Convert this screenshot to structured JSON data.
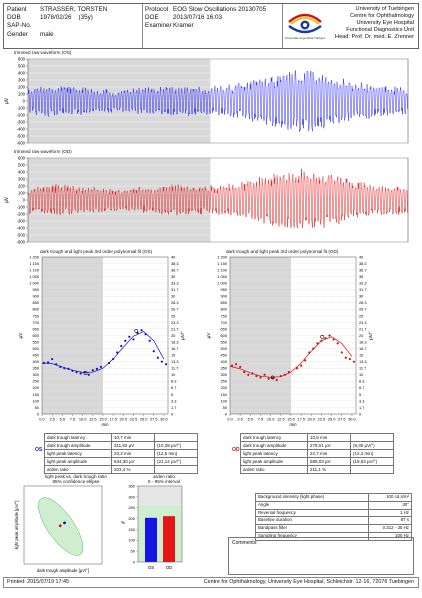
{
  "header": {
    "labels": [
      "Patient",
      "DOB",
      "SAP-No.",
      "Gender"
    ],
    "values": [
      "STRASSER, TORSTEN",
      "1978/02/26    (35y)",
      "",
      "male"
    ],
    "labels2": [
      "Protocol",
      "DOE",
      "Examiner"
    ],
    "values2": [
      "EOG Slow Oscillations 20130705",
      "2013/07/16 16:03",
      "Kramer"
    ],
    "institution": [
      "University of Tuebingen",
      "Centre for Ophthalmology",
      "University Eye Hospital",
      "Functional Diagnostics Unit",
      "Head: Prof. Dr. med. E. Zrenner"
    ],
    "logo_caption": "Universitäts-Augenklinik Tübingen"
  },
  "waveforms": [
    {
      "title": "trimmed raw waveform (OS)",
      "ylabel": "µV",
      "color": "#1a1aff",
      "yticks": [
        "600",
        "500",
        "400",
        "300",
        "200",
        "100",
        "0",
        "-100",
        "-200",
        "-300",
        "-400",
        "-500",
        "-600"
      ]
    },
    {
      "title": "trimmed raw waveform (OD)",
      "ylabel": "µV",
      "color": "#e01010",
      "yticks": [
        "600",
        "500",
        "400",
        "300",
        "200",
        "100",
        "0",
        "-100",
        "-200",
        "-300",
        "-400",
        "-500",
        "-600"
      ]
    }
  ],
  "chart_data": [
    {
      "type": "scatter",
      "title": "dark trough and light peak 3rd order polynomial fit (OS)",
      "xlabel": "min",
      "ylabel": "µV",
      "ylabel_right": "µV/°",
      "xlim": [
        0,
        31
      ],
      "ylim": [
        0,
        1200
      ],
      "xticks": [
        "0.0",
        "2.5",
        "5.0",
        "7.5",
        "10.0",
        "12.5",
        "15.0",
        "17.5",
        "20.0",
        "22.5",
        "25.0",
        "27.5",
        "30.0"
      ],
      "yticks_left": [
        "1 200",
        "1 150",
        "1 100",
        "1 050",
        "1 000",
        "950",
        "900",
        "850",
        "800",
        "750",
        "700",
        "650",
        "600",
        "550",
        "500",
        "450",
        "400",
        "350",
        "300",
        "250",
        "200",
        "150",
        "100",
        "50",
        "0"
      ],
      "yticks_right": [
        "40",
        "38.3",
        "36.7",
        "35",
        "33.3",
        "31.7",
        "30",
        "28.3",
        "26.7",
        "25",
        "23.3",
        "21.7",
        "20",
        "18.3",
        "16.7",
        "15",
        "13.3",
        "11.7",
        "10",
        "8.3",
        "6.7",
        "5",
        "3.3",
        "1.7",
        "0"
      ],
      "dark_phase": [
        0,
        15
      ],
      "color": "#1010cc",
      "x": [
        0.5,
        1.5,
        2.5,
        3.5,
        4.5,
        5.5,
        6.5,
        7.5,
        8.5,
        9.5,
        10.5,
        11.5,
        12.5,
        13.5,
        14.5,
        16.5,
        17.5,
        18.5,
        19.5,
        20.5,
        21.5,
        22.5,
        23.5,
        24.5,
        25.5,
        26.5,
        27.5,
        28.5,
        29.5,
        30.5
      ],
      "y": [
        390,
        395,
        420,
        380,
        360,
        350,
        345,
        330,
        320,
        310,
        320,
        300,
        335,
        345,
        360,
        390,
        420,
        470,
        520,
        560,
        590,
        570,
        620,
        640,
        610,
        560,
        480,
        430,
        400,
        380
      ],
      "fit": [
        [
          0,
          390
        ],
        [
          2.5,
          385
        ],
        [
          5,
          360
        ],
        [
          7.5,
          335
        ],
        [
          10,
          318
        ],
        [
          12.5,
          320
        ],
        [
          15,
          350
        ],
        [
          17.5,
          420
        ],
        [
          20,
          510
        ],
        [
          22.5,
          595
        ],
        [
          25,
          630
        ],
        [
          27.5,
          560
        ],
        [
          30,
          420
        ]
      ],
      "markers": [
        [
          10.7,
          312
        ],
        [
          23.2,
          634
        ]
      ]
    },
    {
      "type": "scatter",
      "title": "dark trough and light peak 3rd order polynomial fit (OD)",
      "xlabel": "min",
      "ylabel": "µV",
      "ylabel_right": "µV/°",
      "xlim": [
        0,
        31
      ],
      "ylim": [
        0,
        1200
      ],
      "xticks": [
        "0.0",
        "2.5",
        "5.0",
        "7.5",
        "10.0",
        "12.5",
        "15.0",
        "17.5",
        "20.0",
        "22.5",
        "25.0",
        "27.5",
        "30.0"
      ],
      "yticks_left": [
        "1 200",
        "1 150",
        "1 100",
        "1 050",
        "1 000",
        "950",
        "900",
        "850",
        "800",
        "750",
        "700",
        "650",
        "600",
        "550",
        "500",
        "450",
        "400",
        "350",
        "300",
        "250",
        "200",
        "150",
        "100",
        "50",
        "0"
      ],
      "yticks_right": [
        "40",
        "38.3",
        "36.7",
        "35",
        "33.3",
        "31.7",
        "30",
        "28.3",
        "26.7",
        "25",
        "23.3",
        "21.7",
        "20",
        "18.3",
        "16.7",
        "15",
        "13.3",
        "11.7",
        "10",
        "8.3",
        "6.7",
        "5",
        "3.3",
        "1.7",
        "0"
      ],
      "dark_phase": [
        0,
        15
      ],
      "color": "#d01010",
      "x": [
        0.5,
        1.5,
        2.5,
        3.5,
        4.5,
        5.5,
        6.5,
        7.5,
        8.5,
        9.5,
        10.5,
        11.5,
        12.5,
        13.5,
        14.5,
        16.5,
        17.5,
        18.5,
        19.5,
        20.5,
        21.5,
        22.5,
        23.5,
        24.5,
        25.5,
        26.5,
        27.5,
        28.5,
        29.5,
        30.5
      ],
      "y": [
        370,
        380,
        360,
        320,
        300,
        310,
        290,
        280,
        300,
        270,
        275,
        260,
        290,
        300,
        320,
        350,
        370,
        410,
        470,
        500,
        540,
        560,
        580,
        600,
        570,
        540,
        470,
        430,
        420,
        400
      ],
      "fit": [
        [
          0,
          365
        ],
        [
          2.5,
          345
        ],
        [
          5,
          315
        ],
        [
          7.5,
          290
        ],
        [
          10,
          280
        ],
        [
          12.5,
          285
        ],
        [
          15,
          320
        ],
        [
          17.5,
          390
        ],
        [
          20,
          480
        ],
        [
          22.5,
          560
        ],
        [
          25,
          590
        ],
        [
          27.5,
          540
        ],
        [
          30,
          440
        ]
      ],
      "markers": [
        [
          10.5,
          279
        ],
        [
          22.7,
          589
        ]
      ]
    },
    {
      "type": "scatter",
      "title": "light peak vs. dark trough ratio",
      "subtitle": "95% confidence ellipse",
      "xlabel": "dark trough amplitude [µV/°]",
      "ylabel": "light peak amplitude [µV/°]",
      "points": [
        {
          "x": 10.4,
          "y": 21.1,
          "color": "#1010cc"
        },
        {
          "x": 9.3,
          "y": 19.6,
          "color": "#d01010"
        }
      ]
    },
    {
      "type": "bar",
      "title": "arden ratio",
      "subtitle": "5 - 95% interval",
      "ylabel": "%",
      "yticks": [
        "350",
        "300",
        "250",
        "200",
        "150",
        "100",
        "50",
        "0"
      ],
      "ylim": [
        0,
        350
      ],
      "categories": [
        "OS",
        "OD"
      ],
      "values": [
        203.4,
        211.1
      ],
      "colors": [
        "#1515e6",
        "#e61515"
      ]
    }
  ],
  "results_os": {
    "side": "OS",
    "rows": [
      [
        "dark trough latency",
        "10,7 min",
        ""
      ],
      [
        "dark trough amplitude",
        "311,82 µV",
        "(10,39 µV/°)"
      ],
      [
        "light peak latency",
        "23,2 min",
        "(12,5 min)"
      ],
      [
        "light peak amplitude",
        "634,30 µV",
        "(21,14 µV/°)"
      ],
      [
        "arden ratio",
        "203,4 %",
        ""
      ]
    ]
  },
  "results_od": {
    "side": "OD",
    "rows": [
      [
        "dark trough latency",
        "10,5 min",
        ""
      ],
      [
        "dark trough amplitude",
        "279,01 µV",
        "(9,30 µV/°)"
      ],
      [
        "light peak latency",
        "22,7 min",
        "(12,2 min)"
      ],
      [
        "light peak amplitude",
        "589,03 µV",
        "(19,63 µV/°)"
      ],
      [
        "arden ratio",
        "211,1 %",
        ""
      ]
    ]
  },
  "parameters": [
    [
      "Background intensity (light phase)",
      "100 cd.s/m²"
    ],
    [
      "Angle",
      "30°"
    ],
    [
      "Reversal frequency",
      "1 Hz"
    ],
    [
      "Baseline duration",
      "87 s"
    ],
    [
      "Bandpass filter",
      "0.312 - 35 Hz"
    ],
    [
      "Sampling frequency",
      "100 Hz"
    ]
  ],
  "comments_label": "Comments:",
  "footer": {
    "printed": "Printed: 2015/07/19 17:45",
    "address": "Centre for Ophthalmology, University Eye Hospital, Schleichstr. 12-16, 72076 Tuebingen"
  }
}
